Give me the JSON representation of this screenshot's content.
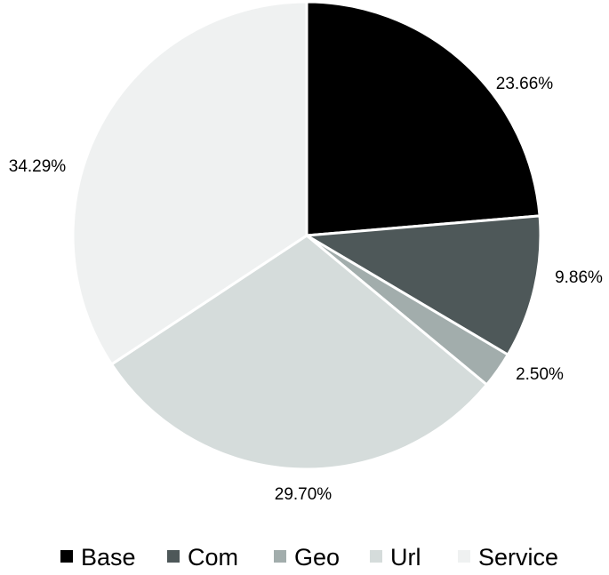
{
  "chart_data": {
    "type": "pie",
    "title": "",
    "categories": [
      "Base",
      "Com",
      "Geo",
      "Url",
      "Service"
    ],
    "values": [
      23.66,
      9.86,
      2.5,
      29.7,
      34.29
    ],
    "value_labels": [
      "23.66%",
      "9.86%",
      "2.50%",
      "29.70%",
      "34.29%"
    ],
    "colors": [
      "#000000",
      "#4e5859",
      "#a2adac",
      "#d5dcdb",
      "#eff1f1"
    ],
    "start_angle": "12 o'clock",
    "direction": "clockwise",
    "legend_position": "bottom"
  }
}
